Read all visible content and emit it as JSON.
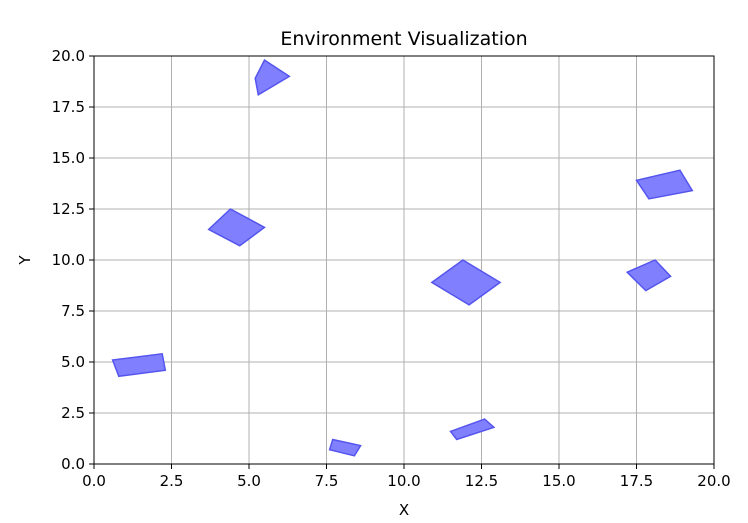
{
  "chart_data": {
    "type": "scatter",
    "title": "Environment Visualization",
    "xlabel": "X",
    "ylabel": "Y",
    "xlim": [
      0,
      20
    ],
    "ylim": [
      0,
      20
    ],
    "x_ticks": [
      "0.0",
      "2.5",
      "5.0",
      "7.5",
      "10.0",
      "12.5",
      "15.0",
      "17.5",
      "20.0"
    ],
    "y_ticks": [
      "0.0",
      "2.5",
      "5.0",
      "7.5",
      "10.0",
      "12.5",
      "15.0",
      "17.5",
      "20.0"
    ],
    "grid": true,
    "fill_color": "#8080ff",
    "edge_color": "#5555ee",
    "polygons": [
      {
        "points": [
          [
            5.2,
            18.9
          ],
          [
            5.5,
            19.8
          ],
          [
            6.3,
            19.0
          ],
          [
            5.3,
            18.1
          ]
        ]
      },
      {
        "points": [
          [
            3.7,
            11.5
          ],
          [
            4.4,
            12.5
          ],
          [
            5.5,
            11.6
          ],
          [
            4.7,
            10.7
          ]
        ]
      },
      {
        "points": [
          [
            0.6,
            5.1
          ],
          [
            2.2,
            5.4
          ],
          [
            2.3,
            4.6
          ],
          [
            0.8,
            4.3
          ]
        ]
      },
      {
        "points": [
          [
            7.7,
            1.2
          ],
          [
            8.6,
            0.9
          ],
          [
            8.4,
            0.4
          ],
          [
            7.6,
            0.7
          ]
        ]
      },
      {
        "points": [
          [
            10.9,
            8.9
          ],
          [
            11.9,
            10.0
          ],
          [
            13.1,
            8.9
          ],
          [
            12.1,
            7.8
          ]
        ]
      },
      {
        "points": [
          [
            11.5,
            1.6
          ],
          [
            12.6,
            2.2
          ],
          [
            12.9,
            1.8
          ],
          [
            11.7,
            1.2
          ]
        ]
      },
      {
        "points": [
          [
            17.2,
            9.4
          ],
          [
            18.1,
            10.0
          ],
          [
            18.6,
            9.2
          ],
          [
            17.8,
            8.5
          ]
        ]
      },
      {
        "points": [
          [
            17.5,
            13.9
          ],
          [
            18.9,
            14.4
          ],
          [
            19.3,
            13.4
          ],
          [
            17.9,
            13.0
          ]
        ]
      }
    ]
  }
}
